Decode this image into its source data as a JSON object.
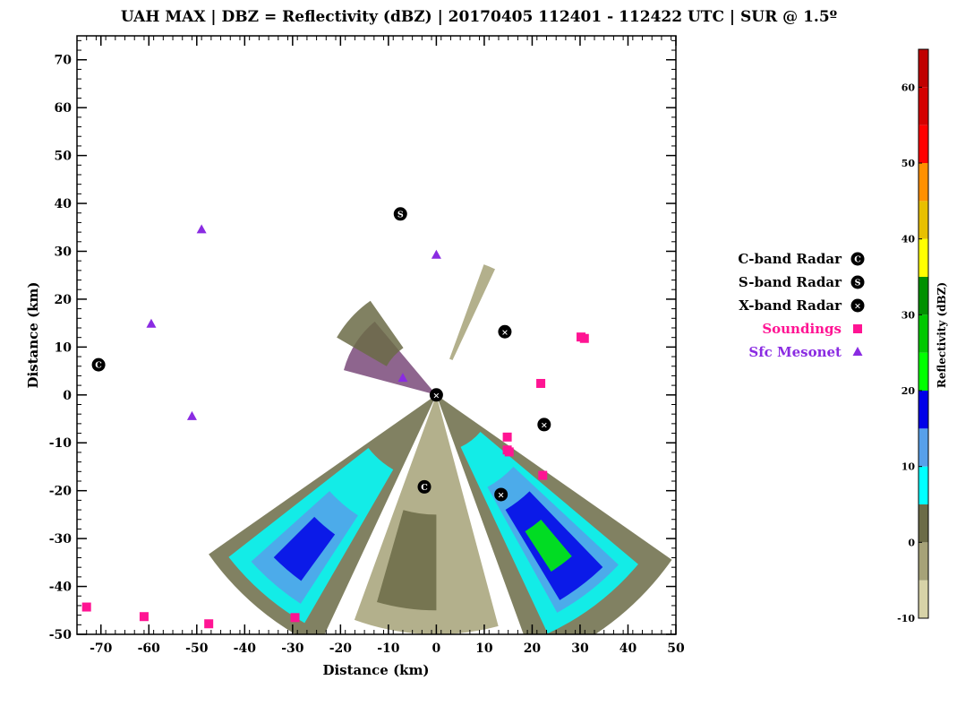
{
  "chart_data": {
    "type": "scatter",
    "title": "UAH MAX | DBZ = Reflectivity (dBZ) | 20170405 112401 - 112422 UTC | SUR @ 1.5º",
    "xlabel": "Distance (km)",
    "ylabel": "Distance (km)",
    "xlim": [
      -75,
      50
    ],
    "ylim": [
      -50,
      75
    ],
    "xticks": [
      -70,
      -60,
      -50,
      -40,
      -30,
      -20,
      -10,
      0,
      10,
      20,
      30,
      40,
      50
    ],
    "yticks": [
      -50,
      -40,
      -30,
      -20,
      -10,
      0,
      10,
      20,
      30,
      40,
      50,
      60,
      70
    ],
    "legend": [
      {
        "label": "C-band Radar",
        "color": "#000000",
        "symbol": "C"
      },
      {
        "label": "S-band Radar",
        "color": "#000000",
        "symbol": "S"
      },
      {
        "label": "X-band Radar",
        "color": "#000000",
        "symbol": "X"
      },
      {
        "label": "Soundings",
        "color": "#ff1493",
        "symbol": "square"
      },
      {
        "label": "Sfc Mesonet",
        "color": "#8a2be2",
        "symbol": "triangle"
      }
    ],
    "series": [
      {
        "name": "C-band Radar",
        "symbol": "C",
        "points": [
          [
            -70.5,
            6.3
          ],
          [
            -2.5,
            -19.2
          ]
        ]
      },
      {
        "name": "S-band Radar",
        "symbol": "S",
        "points": [
          [
            -7.5,
            37.8
          ]
        ]
      },
      {
        "name": "X-band Radar",
        "symbol": "X",
        "points": [
          [
            0,
            0
          ],
          [
            14.3,
            13.2
          ],
          [
            22.5,
            -6.2
          ],
          [
            13.5,
            -20.8
          ]
        ]
      },
      {
        "name": "Soundings",
        "symbol": "square",
        "points": [
          [
            -73,
            -44.3
          ],
          [
            -61,
            -46.3
          ],
          [
            -47.5,
            -47.8
          ],
          [
            -29.5,
            -46.5
          ],
          [
            14.8,
            -8.8
          ],
          [
            14.8,
            -11.5
          ],
          [
            15.2,
            -11.9
          ],
          [
            21.8,
            2.4
          ],
          [
            22.2,
            -16.8
          ],
          [
            30.2,
            12.1
          ],
          [
            30.9,
            11.8
          ]
        ]
      },
      {
        "name": "Sfc Mesonet",
        "symbol": "triangle",
        "points": [
          [
            -49,
            34.5
          ],
          [
            -59.5,
            14.8
          ],
          [
            -51,
            -4.5
          ],
          [
            0,
            29.2
          ],
          [
            -7,
            3.5
          ]
        ]
      }
    ],
    "colorbar": {
      "label": "Reflectivity (dBZ)",
      "range": [
        -10,
        65
      ],
      "ticks": [
        -10,
        0,
        10,
        20,
        30,
        40,
        50,
        60
      ],
      "bands": [
        {
          "from": -10,
          "to": -5,
          "color": "#d7d3a8"
        },
        {
          "from": -5,
          "to": 0,
          "color": "#a6a278"
        },
        {
          "from": 0,
          "to": 5,
          "color": "#6b6b47"
        },
        {
          "from": 5,
          "to": 10,
          "color": "#00ffff"
        },
        {
          "from": 10,
          "to": 15,
          "color": "#57a0ea"
        },
        {
          "from": 15,
          "to": 20,
          "color": "#0000e8"
        },
        {
          "from": 20,
          "to": 25,
          "color": "#00ff00"
        },
        {
          "from": 25,
          "to": 30,
          "color": "#00c800"
        },
        {
          "from": 30,
          "to": 35,
          "color": "#009000"
        },
        {
          "from": 35,
          "to": 40,
          "color": "#ffff00"
        },
        {
          "from": 40,
          "to": 45,
          "color": "#e8c000"
        },
        {
          "from": 45,
          "to": 50,
          "color": "#ff9000"
        },
        {
          "from": 50,
          "to": 55,
          "color": "#ff0000"
        },
        {
          "from": 55,
          "to": 60,
          "color": "#d40000"
        },
        {
          "from": 60,
          "to": 65,
          "color": "#c00000"
        }
      ]
    },
    "reflectivity_sectors": [
      {
        "az_from": 125,
        "az_to": 160,
        "r_from": 0,
        "r_to": 60,
        "color": "#6b6b47"
      },
      {
        "az_from": 130,
        "az_to": 155,
        "r_from": 12,
        "r_to": 55,
        "color": "#00ffff"
      },
      {
        "az_from": 133,
        "az_to": 151,
        "r_from": 22,
        "r_to": 52,
        "color": "#57a0ea"
      },
      {
        "az_from": 136,
        "az_to": 149,
        "r_from": 28,
        "r_to": 50,
        "color": "#0000e8"
      },
      {
        "az_from": 140,
        "az_to": 147,
        "r_from": 34,
        "r_to": 44,
        "color": "#00ff00"
      },
      {
        "az_from": 205,
        "az_to": 235,
        "r_from": 0,
        "r_to": 58,
        "color": "#6b6b47"
      },
      {
        "az_from": 210,
        "az_to": 232,
        "r_from": 18,
        "r_to": 55,
        "color": "#00ffff"
      },
      {
        "az_from": 213,
        "az_to": 228,
        "r_from": 30,
        "r_to": 52,
        "color": "#57a0ea"
      },
      {
        "az_from": 216,
        "az_to": 225,
        "r_from": 36,
        "r_to": 48,
        "color": "#0000e8"
      },
      {
        "az_from": 285,
        "az_to": 320,
        "r_from": 0,
        "r_to": 20,
        "color": "#7a4a7a"
      },
      {
        "az_from": 300,
        "az_to": 325,
        "r_from": 12,
        "r_to": 24,
        "color": "#6b6b47"
      },
      {
        "az_from": 20,
        "az_to": 25,
        "r_from": 8,
        "r_to": 29,
        "color": "#a6a278"
      },
      {
        "az_from": 165,
        "az_to": 200,
        "r_from": 0,
        "r_to": 50,
        "color": "#a6a278"
      },
      {
        "az_from": 180,
        "az_to": 196,
        "r_from": 25,
        "r_to": 45,
        "color": "#6b6b47"
      }
    ]
  }
}
